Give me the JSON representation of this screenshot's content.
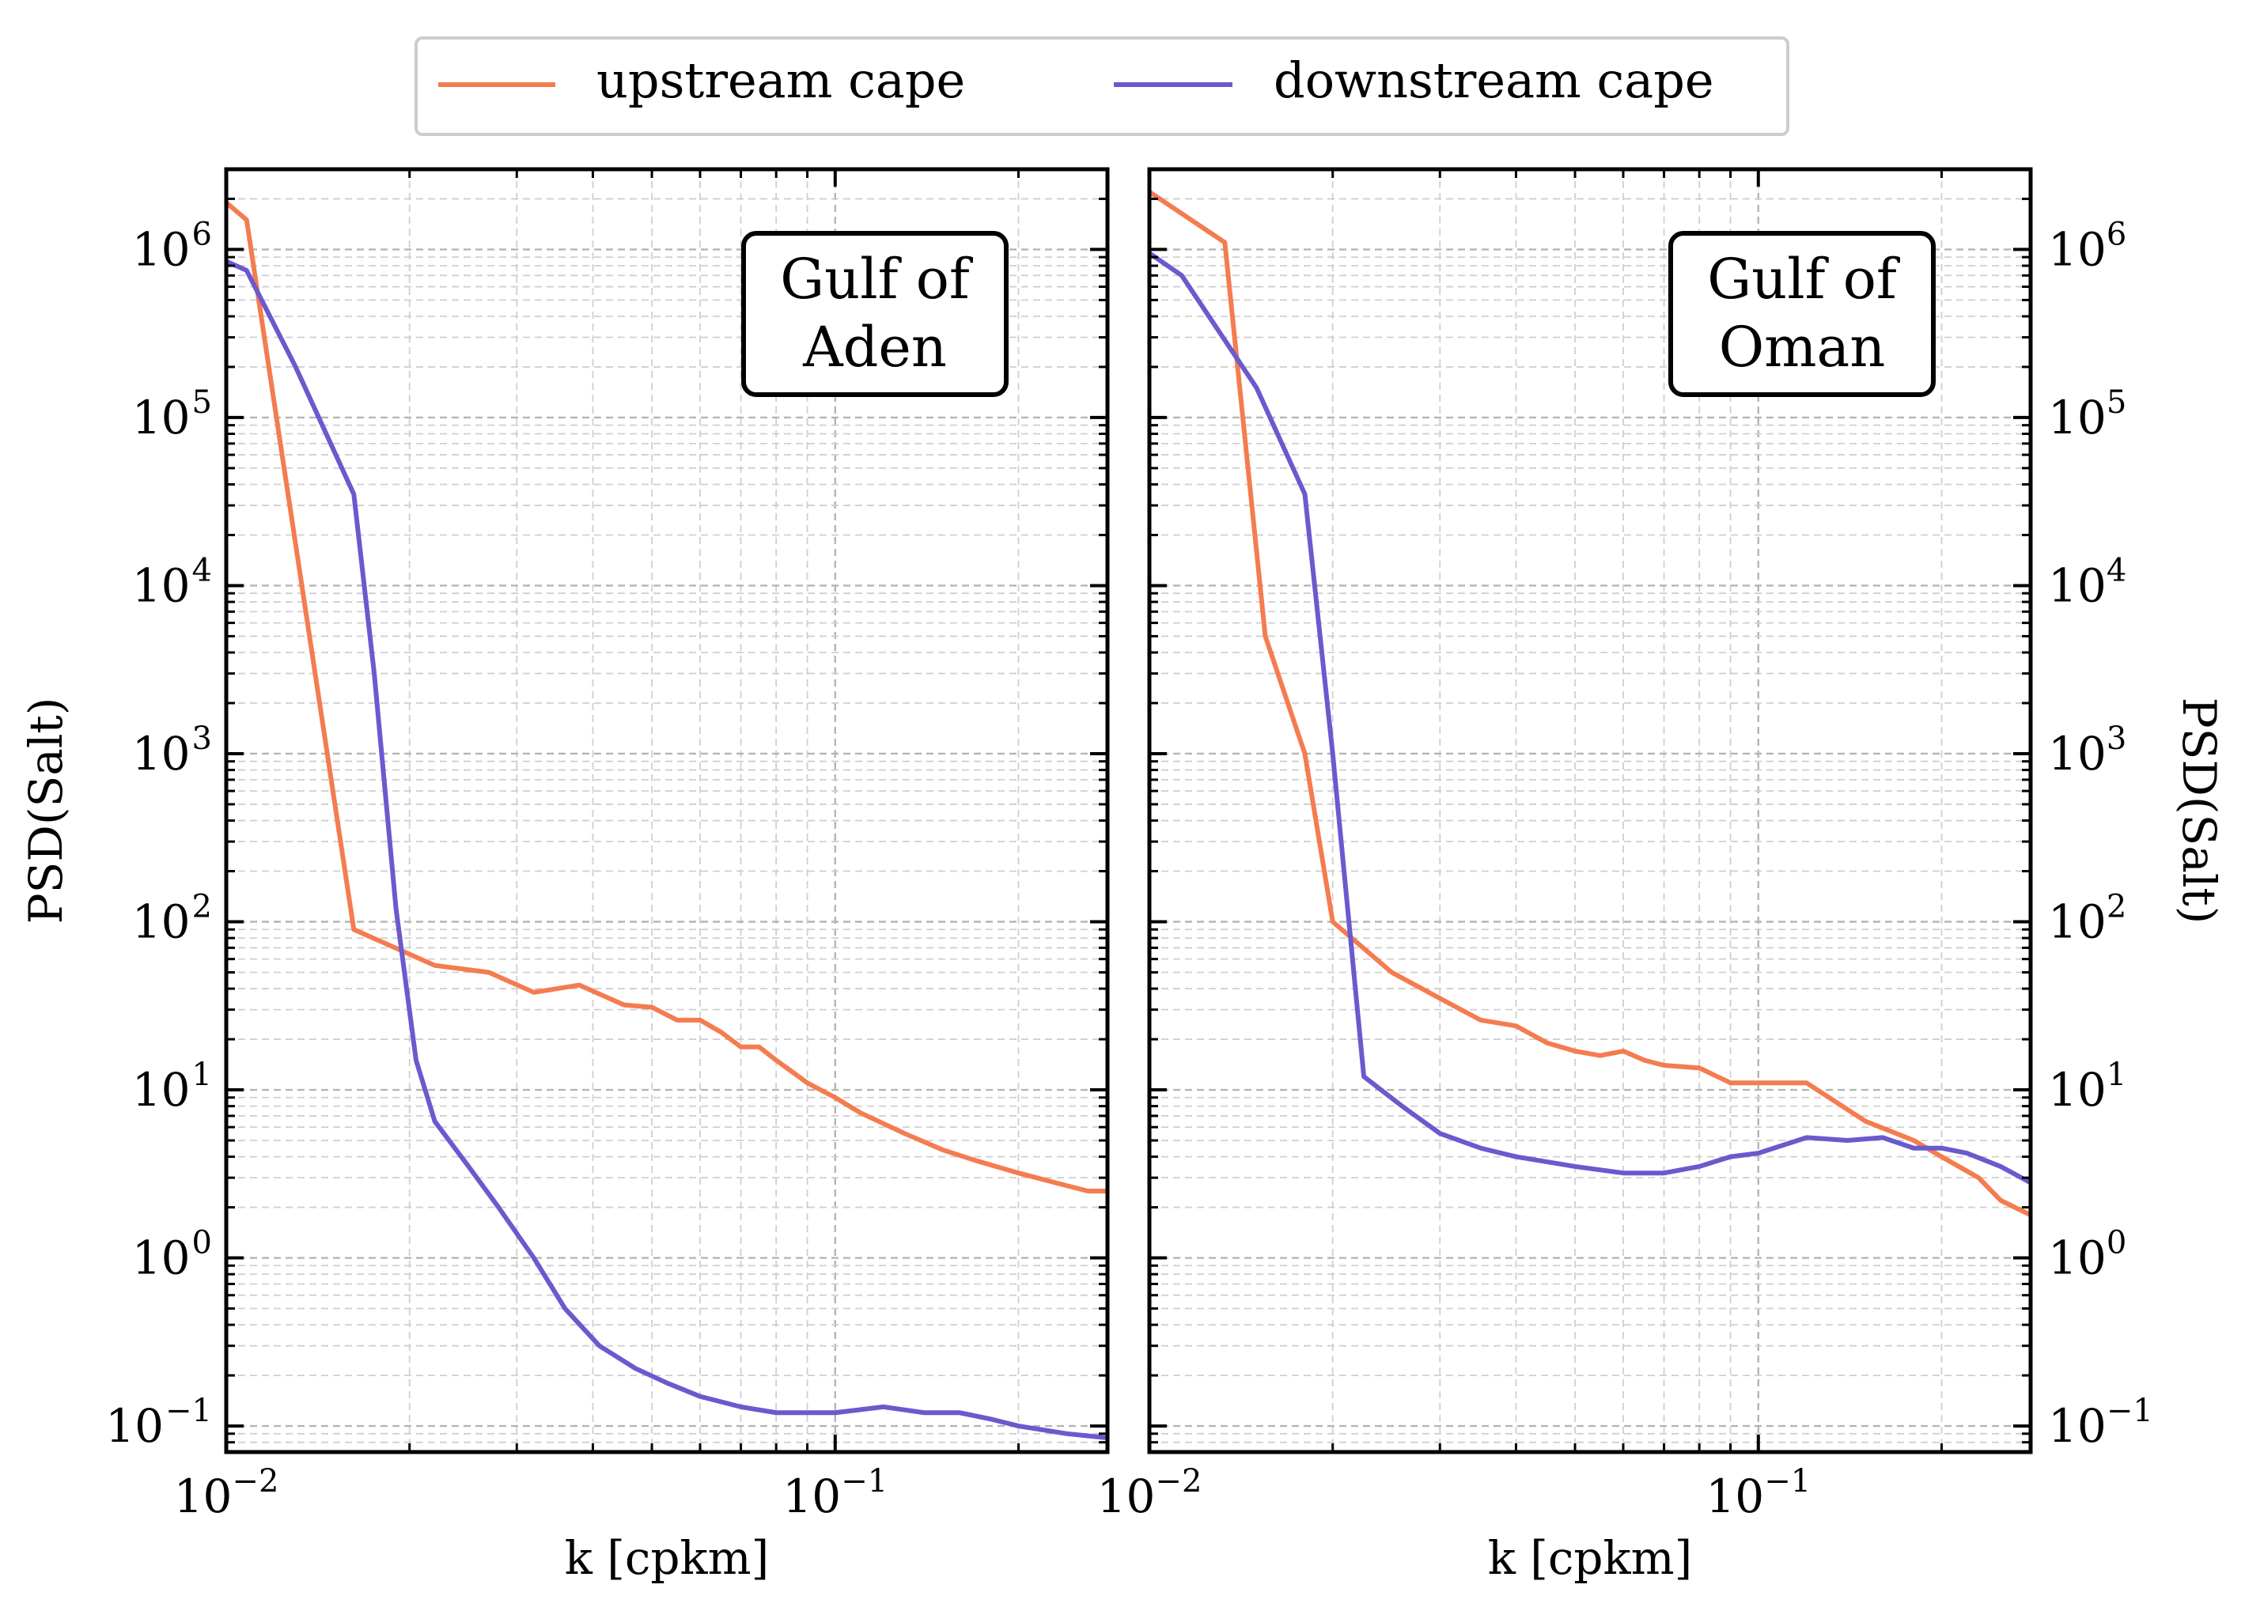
{
  "legend": {
    "placement": "top-center",
    "items": [
      {
        "label": "upstream cape",
        "color": "#f47c50"
      },
      {
        "label": "downstream cape",
        "color": "#6a5acd"
      }
    ]
  },
  "tick_labels": {
    "y": [
      "10",
      "10",
      "10",
      "10",
      "10",
      "10",
      "10",
      "10"
    ],
    "y_exp": [
      "6",
      "5",
      "4",
      "3",
      "2",
      "1",
      "0",
      "−1"
    ],
    "x": [
      "10",
      "10"
    ],
    "x_exp": [
      "−2",
      "−1"
    ]
  },
  "chart_data": [
    {
      "type": "line",
      "annotation": {
        "line1": "Gulf of",
        "line2": "Aden"
      },
      "xlabel": "k [cpkm]",
      "ylabel": "PSD(Salt)",
      "xscale": "log",
      "yscale": "log",
      "xlim": [
        0.01,
        0.28
      ],
      "ylim": [
        0.07,
        3000000
      ],
      "grid": true,
      "series": [
        {
          "name": "upstream cape",
          "color": "#f47c50",
          "x": [
            0.01,
            0.0108,
            0.0162,
            0.022,
            0.027,
            0.032,
            0.038,
            0.045,
            0.05,
            0.055,
            0.06,
            0.065,
            0.07,
            0.075,
            0.08,
            0.09,
            0.1,
            0.11,
            0.13,
            0.15,
            0.17,
            0.2,
            0.23,
            0.26,
            0.28
          ],
          "y": [
            1900000,
            1500000,
            90,
            55,
            50,
            38,
            42,
            32,
            31,
            26,
            26,
            22,
            18,
            18,
            15,
            11,
            9,
            7.3,
            5.5,
            4.4,
            3.8,
            3.2,
            2.8,
            2.5,
            2.5
          ]
        },
        {
          "name": "downstream cape",
          "color": "#6a5acd",
          "x": [
            0.01,
            0.0108,
            0.013,
            0.0162,
            0.0175,
            0.019,
            0.0205,
            0.022,
            0.025,
            0.028,
            0.032,
            0.036,
            0.041,
            0.047,
            0.053,
            0.06,
            0.07,
            0.08,
            0.09,
            0.1,
            0.12,
            0.14,
            0.16,
            0.18,
            0.2,
            0.24,
            0.28
          ],
          "y": [
            850000,
            750000,
            200000,
            35000,
            3000,
            120,
            15,
            6.5,
            3.5,
            2.0,
            1.0,
            0.5,
            0.3,
            0.22,
            0.18,
            0.15,
            0.13,
            0.12,
            0.12,
            0.12,
            0.13,
            0.12,
            0.12,
            0.11,
            0.1,
            0.09,
            0.085
          ]
        }
      ]
    },
    {
      "type": "line",
      "annotation": {
        "line1": "Gulf of",
        "line2": "Oman"
      },
      "xlabel": "k [cpkm]",
      "ylabel": "PSD(Salt)",
      "xscale": "log",
      "yscale": "log",
      "xlim": [
        0.01,
        0.28
      ],
      "ylim": [
        0.07,
        3000000
      ],
      "grid": true,
      "series": [
        {
          "name": "upstream cape",
          "color": "#f47c50",
          "x": [
            0.01,
            0.0133,
            0.0155,
            0.018,
            0.02,
            0.025,
            0.03,
            0.035,
            0.04,
            0.045,
            0.05,
            0.055,
            0.06,
            0.065,
            0.07,
            0.08,
            0.09,
            0.1,
            0.12,
            0.15,
            0.18,
            0.2,
            0.23,
            0.25,
            0.28
          ],
          "y": [
            2200000,
            1100000,
            5000,
            1000,
            100,
            50,
            35,
            26,
            24,
            19,
            17,
            16,
            17,
            15,
            14,
            13.5,
            11,
            11,
            11,
            6.5,
            5,
            4,
            3,
            2.2,
            1.8
          ]
        },
        {
          "name": "downstream cape",
          "color": "#6a5acd",
          "x": [
            0.01,
            0.0113,
            0.015,
            0.018,
            0.02,
            0.0225,
            0.026,
            0.03,
            0.035,
            0.04,
            0.05,
            0.06,
            0.07,
            0.08,
            0.09,
            0.1,
            0.12,
            0.14,
            0.16,
            0.18,
            0.2,
            0.22,
            0.25,
            0.28
          ],
          "y": [
            950000,
            700000,
            150000,
            35000,
            1000,
            12,
            8,
            5.5,
            4.5,
            4,
            3.5,
            3.2,
            3.2,
            3.5,
            4,
            4.2,
            5.2,
            5.0,
            5.2,
            4.5,
            4.5,
            4.2,
            3.5,
            2.8
          ]
        }
      ]
    }
  ]
}
